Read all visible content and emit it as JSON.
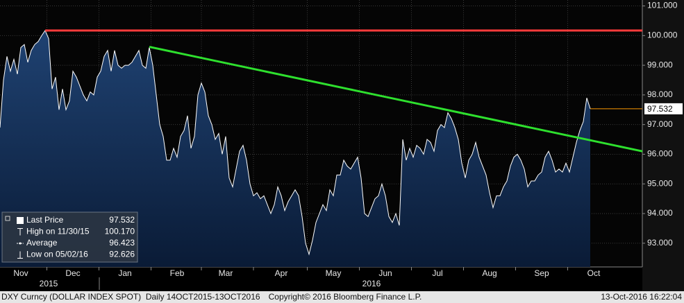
{
  "chart_data": {
    "type": "area",
    "line_color": "#ffffff",
    "fill_top": "#1f4272",
    "fill_bottom": "#0a1b36",
    "grid": true,
    "categories": [
      null,
      null,
      null,
      null,
      null,
      null,
      "Nov",
      null,
      null,
      null,
      null,
      null,
      null,
      null,
      null,
      null,
      null,
      null,
      null,
      null,
      null,
      "Dec",
      null,
      null,
      null,
      null,
      null,
      null,
      null,
      null,
      null,
      null,
      null,
      null,
      null,
      null,
      "Jan",
      null,
      null,
      null,
      null,
      null,
      null,
      null,
      null,
      null,
      null,
      null,
      null,
      null,
      null,
      "Feb",
      null,
      null,
      null,
      null,
      null,
      null,
      null,
      null,
      null,
      null,
      null,
      null,
      null,
      "Mar",
      null,
      null,
      null,
      null,
      null,
      null,
      null,
      null,
      null,
      null,
      null,
      null,
      null,
      null,
      null,
      "Apr",
      null,
      null,
      null,
      null,
      null,
      null,
      null,
      null,
      null,
      null,
      null,
      null,
      null,
      null,
      "May",
      null,
      null,
      null,
      null,
      null,
      null,
      null,
      null,
      null,
      null,
      null,
      null,
      null,
      null,
      "Jun",
      null,
      null,
      null,
      null,
      null,
      null,
      null,
      null,
      null,
      null,
      null,
      null,
      null,
      null,
      "Jul",
      null,
      null,
      null,
      null,
      null,
      null,
      null,
      null,
      null,
      null,
      null,
      null,
      null,
      null,
      "Aug",
      null,
      null,
      null,
      null,
      null,
      null,
      null,
      null,
      null,
      null,
      null,
      null,
      null,
      null,
      "Sep",
      null,
      null,
      null,
      null,
      null,
      null,
      null,
      null,
      null,
      null,
      null,
      null,
      null,
      null,
      "Oct",
      null,
      null,
      null,
      null,
      null,
      null,
      null,
      null,
      null,
      null,
      null,
      null,
      null,
      null
    ],
    "values": [
      96.9,
      98.5,
      99.3,
      98.8,
      99.2,
      98.7,
      99.6,
      99.7,
      99.1,
      99.5,
      99.7,
      99.8,
      100.0,
      100.17,
      99.9,
      98.2,
      98.6,
      97.5,
      98.2,
      97.5,
      97.8,
      98.8,
      98.6,
      98.3,
      98.0,
      97.8,
      98.1,
      98.0,
      98.6,
      98.8,
      99.3,
      99.5,
      98.8,
      99.5,
      99.0,
      98.9,
      99.0,
      99.0,
      99.1,
      99.3,
      99.5,
      99.0,
      98.9,
      99.6,
      99.0,
      98.0,
      97.0,
      96.6,
      95.8,
      95.8,
      96.2,
      95.9,
      96.6,
      96.8,
      97.3,
      96.2,
      96.6,
      98.0,
      98.4,
      98.1,
      97.3,
      97.0,
      96.5,
      96.7,
      96.0,
      96.6,
      95.2,
      94.9,
      95.5,
      96.1,
      96.3,
      95.8,
      95.0,
      94.6,
      94.7,
      94.5,
      94.6,
      94.3,
      94.0,
      94.3,
      94.9,
      94.6,
      94.1,
      94.4,
      94.6,
      94.8,
      94.6,
      93.9,
      93.0,
      92.626,
      93.1,
      93.7,
      94.0,
      94.3,
      94.1,
      94.8,
      94.6,
      95.3,
      95.3,
      95.8,
      95.6,
      95.5,
      95.7,
      95.9,
      95.2,
      94.0,
      93.9,
      94.2,
      94.5,
      94.6,
      95.0,
      94.6,
      93.9,
      93.7,
      94.0,
      93.6,
      96.5,
      95.8,
      96.2,
      95.9,
      96.3,
      96.2,
      96.0,
      96.5,
      96.4,
      96.1,
      96.8,
      97.0,
      96.9,
      97.4,
      97.2,
      96.9,
      96.5,
      95.7,
      95.2,
      95.8,
      96.0,
      96.4,
      95.9,
      95.6,
      95.3,
      94.7,
      94.2,
      94.6,
      94.6,
      94.9,
      95.1,
      95.6,
      95.9,
      96.0,
      95.8,
      95.5,
      94.9,
      95.1,
      95.1,
      95.3,
      95.4,
      95.9,
      96.1,
      95.8,
      95.4,
      95.5,
      95.4,
      95.7,
      95.4,
      95.9,
      96.4,
      96.8,
      97.1,
      97.9,
      97.532,
      null,
      null,
      null,
      null,
      null,
      null,
      null,
      null,
      null,
      null,
      null,
      null,
      null,
      null,
      null
    ],
    "year_labels": [
      "2015",
      "2016"
    ],
    "ylim": [
      92.2,
      101.2
    ],
    "yticks": [
      {
        "value": 93,
        "label": "93.000"
      },
      {
        "value": 94,
        "label": "94.000"
      },
      {
        "value": 95,
        "label": "95.000"
      },
      {
        "value": 96,
        "label": "96.000"
      },
      {
        "value": 97,
        "label": "97.000"
      },
      {
        "value": 98,
        "label": "98.000"
      },
      {
        "value": 99,
        "label": "99.000"
      },
      {
        "value": 100,
        "label": "100.000"
      },
      {
        "value": 101,
        "label": "101.000"
      }
    ],
    "high_line_color": "#ff3b3b",
    "last_price_line_color": "#ff9a00",
    "trendline": {
      "color": "#2ee02e",
      "points": [
        [
          43,
          99.62
        ],
        [
          185,
          96.1
        ]
      ]
    },
    "legend": [
      {
        "label": "Last Price",
        "value": 97.532
      },
      {
        "label": "High on 11/30/15",
        "value": 100.17,
        "value_label": "100.170"
      },
      {
        "label": "Average",
        "value": 96.423
      },
      {
        "label": "Low on 05/02/16",
        "value": 92.626
      }
    ],
    "footer": {
      "left": "DXY Curncy (DOLLAR INDEX SPOT)  Daily 14OCT2015-13OCT2016",
      "center": "Copyright© 2016 Bloomberg Finance L.P.",
      "right": "13-Oct-2016 16:22:04"
    }
  }
}
